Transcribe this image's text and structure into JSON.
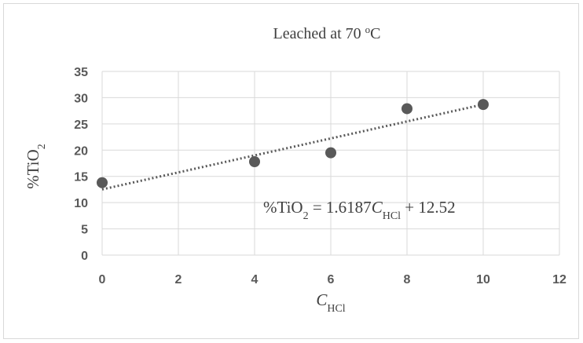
{
  "chart_data": {
    "type": "scatter",
    "title": {
      "text": "Leached at 70 ",
      "sup": "o",
      "unit": "C"
    },
    "xlabel": {
      "base": "C",
      "sub": "HCl"
    },
    "ylabel": {
      "base": "%TiO",
      "sub": "2"
    },
    "xlim": [
      0,
      12
    ],
    "ylim": [
      0,
      35
    ],
    "x_ticks": [
      0,
      2,
      4,
      6,
      8,
      10,
      12
    ],
    "y_ticks": [
      0,
      5,
      10,
      15,
      20,
      25,
      30,
      35
    ],
    "grid": true,
    "legend": "none",
    "series": [
      {
        "x": [
          0,
          4,
          6,
          8,
          10
        ],
        "y": [
          13.8,
          17.8,
          19.5,
          27.9,
          28.7
        ],
        "marker_color": "#595959"
      }
    ],
    "trendline": {
      "type": "linear",
      "slope": 1.6187,
      "intercept": 12.52,
      "color": "#595959",
      "style": "dotted",
      "equation": {
        "p1": "%TiO",
        "p1_sub": "2",
        "p2": " = 1.6187",
        "p3": "C",
        "p3_sub": "HCl",
        "p4": " + 12.52"
      }
    },
    "colors": {
      "grid": "#d9d9d9",
      "text": "#595959"
    }
  }
}
